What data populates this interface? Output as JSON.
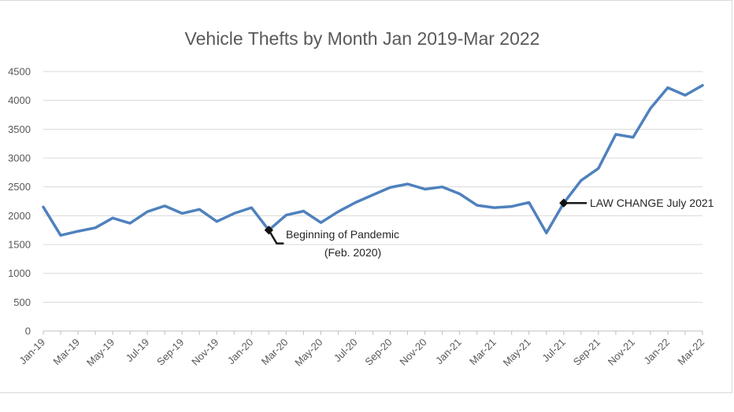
{
  "chart_data": {
    "type": "line",
    "title": "Vehicle Thefts by Month Jan 2019-Mar 2022",
    "xlabel": "",
    "ylabel": "",
    "ylim": [
      0,
      4500
    ],
    "yticks": [
      0,
      500,
      1000,
      1500,
      2000,
      2500,
      3000,
      3500,
      4000,
      4500
    ],
    "grid": true,
    "color": "#4f81bd",
    "x": [
      "Jan-19",
      "Feb-19",
      "Mar-19",
      "Apr-19",
      "May-19",
      "Jun-19",
      "Jul-19",
      "Aug-19",
      "Sep-19",
      "Oct-19",
      "Nov-19",
      "Dec-19",
      "Jan-20",
      "Feb-20",
      "Mar-20",
      "Apr-20",
      "May-20",
      "Jun-20",
      "Jul-20",
      "Aug-20",
      "Sep-20",
      "Oct-20",
      "Nov-20",
      "Dec-20",
      "Jan-21",
      "Feb-21",
      "Mar-21",
      "Apr-21",
      "May-21",
      "Jun-21",
      "Jul-21",
      "Aug-21",
      "Sep-21",
      "Oct-21",
      "Nov-21",
      "Dec-21",
      "Jan-22",
      "Feb-22",
      "Mar-22"
    ],
    "xtick_labels": [
      "Jan-19",
      "Mar-19",
      "May-19",
      "Jul-19",
      "Sep-19",
      "Nov-19",
      "Jan-20",
      "Mar-20",
      "May-20",
      "Jul-20",
      "Sep-20",
      "Nov-20",
      "Jan-21",
      "Mar-21",
      "May-21",
      "Jul-21",
      "Sep-21",
      "Nov-21",
      "Jan-22",
      "Mar-22"
    ],
    "series": [
      {
        "values": [
          2150,
          1660,
          1730,
          1790,
          1960,
          1870,
          2070,
          2170,
          2040,
          2110,
          1900,
          2040,
          2140,
          1750,
          2010,
          2080,
          1880,
          2070,
          2230,
          2360,
          2490,
          2550,
          2460,
          2500,
          2380,
          2180,
          2140,
          2160,
          2230,
          1700,
          2220,
          2610,
          2820,
          3410,
          3360,
          3860,
          4220,
          4090,
          4260
        ]
      }
    ],
    "annotations": [
      {
        "line1": "Beginning of Pandemic",
        "line2": "(Feb. 2020)",
        "at": "Feb-20"
      },
      {
        "line1": "LAW CHANGE July 2021",
        "at": "Jul-21"
      }
    ]
  }
}
